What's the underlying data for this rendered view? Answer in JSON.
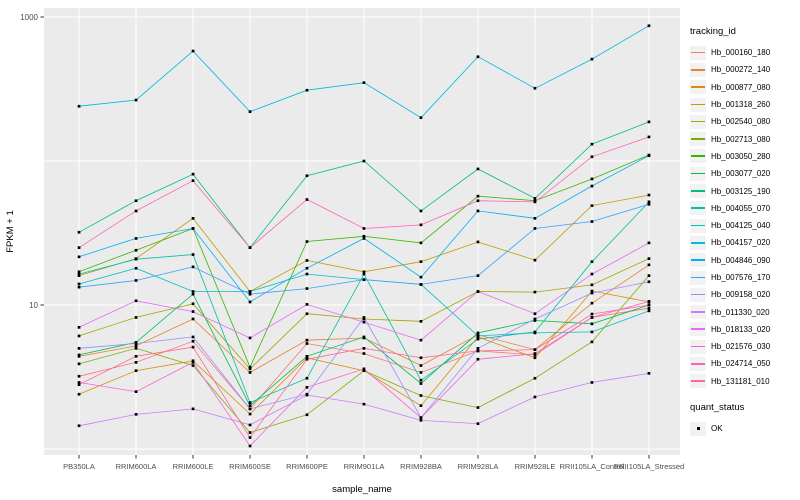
{
  "chart_data": {
    "type": "line",
    "title": "",
    "xlabel": "sample_name",
    "ylabel": "FPKM + 1",
    "y_scale": "log10",
    "y_tick_labels": [
      "1000",
      "10"
    ],
    "y_tick_values": [
      1000,
      10
    ],
    "y_gridline_values": [
      1,
      10,
      100,
      1000
    ],
    "ylim": [
      1,
      1200
    ],
    "grid": true,
    "legend_position": "right",
    "panel_bg": "#EBEBEB",
    "grid_color": "#FFFFFF",
    "point_color": "#000000",
    "tick_text_color": "#4D4D4D",
    "categories": [
      "PB350LA",
      "RRIM600LA",
      "RRIM600LE",
      "RRIM600SE",
      "RRIM600PE",
      "RRIM901LA",
      "RRIM928BA",
      "RRIM928LA",
      "RRIM928LE",
      "RRII105LA_Control",
      "RRII105LA_Stressed"
    ],
    "series": [
      {
        "name": "Hb_000160_180",
        "color": "#F8766D",
        "values": [
          3.2,
          4.0,
          5.6,
          1.9,
          5.4,
          4.6,
          3.4,
          4.8,
          4.5,
          8.2,
          9.5
        ]
      },
      {
        "name": "Hb_000272_140",
        "color": "#EA8331",
        "values": [
          4.4,
          5.2,
          8.0,
          3.4,
          5.7,
          5.9,
          3.8,
          6.2,
          4.9,
          10.3,
          19
        ]
      },
      {
        "name": "Hb_000877_080",
        "color": "#D89000",
        "values": [
          2.4,
          3.5,
          4.1,
          1.75,
          4.3,
          3.5,
          2.0,
          6.0,
          4.3,
          12.5,
          10.5
        ]
      },
      {
        "name": "Hb_001318_260",
        "color": "#C09B00",
        "values": [
          16,
          21,
          40,
          12.4,
          20.4,
          17,
          20,
          27.4,
          20.5,
          49,
          58
        ]
      },
      {
        "name": "Hb_002540_080",
        "color": "#A3A500",
        "values": [
          6.1,
          8.2,
          10.2,
          3.6,
          8.7,
          8.0,
          7.7,
          12.4,
          12.3,
          13.8,
          21
        ]
      },
      {
        "name": "Hb_002713_080",
        "color": "#7CAE00",
        "values": [
          3.9,
          5.0,
          3.8,
          1.3,
          1.73,
          3.5,
          2.35,
          1.94,
          3.1,
          5.55,
          16
        ]
      },
      {
        "name": "Hb_003050_280",
        "color": "#39B600",
        "values": [
          17,
          24,
          34,
          3.7,
          27.6,
          30,
          27,
          57,
          53,
          75,
          110
        ]
      },
      {
        "name": "Hb_003077_020",
        "color": "#00BB4E",
        "values": [
          4.5,
          5.5,
          11.9,
          2.0,
          4.4,
          6.0,
          2.85,
          6.4,
          7.8,
          7.4,
          10
        ]
      },
      {
        "name": "Hb_003125_190",
        "color": "#00BF7D",
        "values": [
          32,
          53,
          81,
          25,
          79,
          100,
          45,
          88,
          55,
          131,
          187
        ]
      },
      {
        "name": "Hb_004055_070",
        "color": "#00C1A3",
        "values": [
          16.4,
          20.8,
          22.4,
          2.1,
          3.1,
          16.4,
          3.0,
          5.8,
          6.5,
          20,
          52
        ]
      },
      {
        "name": "Hb_004125_040",
        "color": "#00BFC4",
        "values": [
          14,
          18,
          12.4,
          12.4,
          16.4,
          15,
          13.9,
          6.1,
          6.4,
          6.5,
          9.1
        ]
      },
      {
        "name": "Hb_004157_020",
        "color": "#00BAE0",
        "values": [
          240,
          265,
          580,
          220,
          310,
          350,
          200,
          530,
          320,
          510,
          870
        ]
      },
      {
        "name": "Hb_004846_090",
        "color": "#00B0F6",
        "values": [
          21.6,
          29,
          34,
          10.5,
          18,
          29,
          15.6,
          45,
          40,
          67,
          109
        ]
      },
      {
        "name": "Hb_007576_170",
        "color": "#35A2FF",
        "values": [
          13.3,
          14.8,
          18.4,
          11.9,
          13,
          15,
          13.9,
          16,
          34,
          38,
          50
        ]
      },
      {
        "name": "Hb_009158_020",
        "color": "#9590FF",
        "values": [
          5.0,
          5.4,
          6.0,
          1.9,
          2.4,
          8.2,
          1.65,
          5.0,
          8.0,
          12.1,
          14.5
        ]
      },
      {
        "name": "Hb_011330_020",
        "color": "#C77CFF",
        "values": [
          1.45,
          1.74,
          1.9,
          1.47,
          2.37,
          2.05,
          1.58,
          1.5,
          2.3,
          2.9,
          3.35
        ]
      },
      {
        "name": "Hb_018133_020",
        "color": "#E76BF3",
        "values": [
          7.0,
          10.7,
          9.0,
          5.9,
          10.1,
          7.6,
          5.7,
          12.4,
          8.7,
          16.4,
          27
        ]
      },
      {
        "name": "Hb_021576_030",
        "color": "#FA62DB",
        "values": [
          2.9,
          2.5,
          4.0,
          1.05,
          2.68,
          3.6,
          1.65,
          4.2,
          4.6,
          8.2,
          10.6
        ]
      },
      {
        "name": "Hb_024714_050",
        "color": "#FF62BC",
        "values": [
          25,
          45,
          73,
          25,
          54,
          34,
          36,
          53,
          52,
          107,
          147
        ]
      },
      {
        "name": "Hb_131181_010",
        "color": "#FF6A98",
        "values": [
          2.8,
          4.4,
          5.1,
          1.2,
          4.2,
          5.0,
          4.3,
          4.8,
          4.9,
          8.65,
          10
        ]
      }
    ],
    "legend": {
      "tracking_title": "tracking_id",
      "quant_title": "quant_status",
      "quant_entries": [
        {
          "label": "OK"
        }
      ]
    }
  }
}
